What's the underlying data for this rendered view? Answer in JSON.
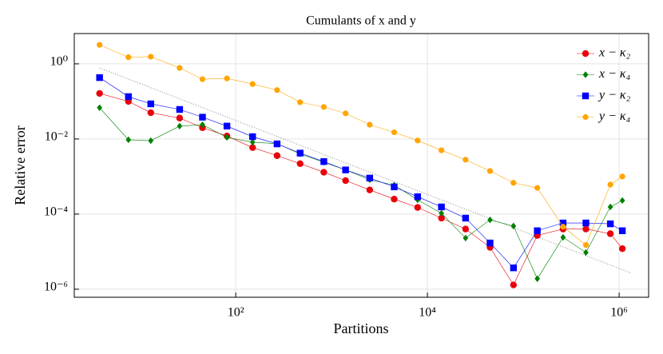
{
  "chart_data": {
    "type": "line",
    "title": "Cumulants of x and y",
    "xlabel": "Partitions",
    "ylabel": "Relative error",
    "xscale": "log",
    "yscale": "log",
    "grid": true,
    "legend": "upper right",
    "xlim": [
      2.07,
      2030000
    ],
    "ylim": [
      6.1e-07,
      6.4
    ],
    "xticks": [
      {
        "value": 100,
        "label": "10²"
      },
      {
        "value": 10000,
        "label": "10⁴"
      },
      {
        "value": 1000000,
        "label": "10⁶"
      }
    ],
    "yticks": [
      {
        "value": 1e-06,
        "label": "10⁻⁶"
      },
      {
        "value": 0.0001,
        "label": "10⁻⁴"
      },
      {
        "value": 0.01,
        "label": "10⁻²"
      },
      {
        "value": 1,
        "label": "10⁰"
      }
    ],
    "x": [
      3.8,
      7.6,
      13,
      26,
      45,
      81,
      150,
      270,
      470,
      830,
      1400,
      2500,
      4500,
      7900,
      14000,
      25000,
      45000,
      79000,
      140000,
      260000,
      450000,
      810000,
      1080000
    ],
    "series": [
      {
        "name": "x − κ₂",
        "color": "#e8000b",
        "marker": "circle",
        "values": [
          0.163,
          0.1,
          0.05,
          0.036,
          0.02,
          0.012,
          0.0059,
          0.0036,
          0.0022,
          0.0013,
          0.00078,
          0.00044,
          0.00025,
          0.00015,
          7.8e-05,
          4e-05,
          1.3e-05,
          1.3e-06,
          2.7e-05,
          4e-05,
          4e-05,
          3e-05,
          1.2e-05
        ]
      },
      {
        "name": "x − κ₄",
        "color": "#008000",
        "marker": "diamond",
        "values": [
          0.068,
          0.0095,
          0.009,
          0.022,
          0.024,
          0.011,
          0.0082,
          0.0075,
          0.004,
          0.0024,
          0.0015,
          0.00082,
          0.00059,
          0.00024,
          0.000105,
          2.3e-05,
          7e-05,
          4.8e-05,
          1.9e-06,
          2.4e-05,
          9.5e-06,
          0.000155,
          0.00023
        ]
      },
      {
        "name": "y − κ₂",
        "color": "#0000ff",
        "marker": "square",
        "values": [
          0.43,
          0.134,
          0.086,
          0.061,
          0.038,
          0.022,
          0.0115,
          0.0074,
          0.0042,
          0.0025,
          0.0015,
          0.00091,
          0.00053,
          0.00029,
          0.000155,
          7.8e-05,
          1.7e-05,
          3.7e-06,
          3.6e-05,
          5.8e-05,
          5.8e-05,
          5.5e-05,
          3.6e-05
        ]
      },
      {
        "name": "y − κ₄",
        "color": "#ffa500",
        "marker": "circle",
        "values": [
          3.2,
          1.5,
          1.55,
          0.78,
          0.39,
          0.41,
          0.29,
          0.2,
          0.095,
          0.071,
          0.048,
          0.024,
          0.015,
          0.0091,
          0.005,
          0.0028,
          0.0014,
          0.00068,
          0.0005,
          4.6e-05,
          1.5e-05,
          0.00061,
          0.001
        ]
      }
    ],
    "reference_line": {
      "color": "#888888",
      "x": [
        3.8,
        1330000
      ],
      "values": [
        0.78,
        2.7e-06
      ]
    }
  }
}
